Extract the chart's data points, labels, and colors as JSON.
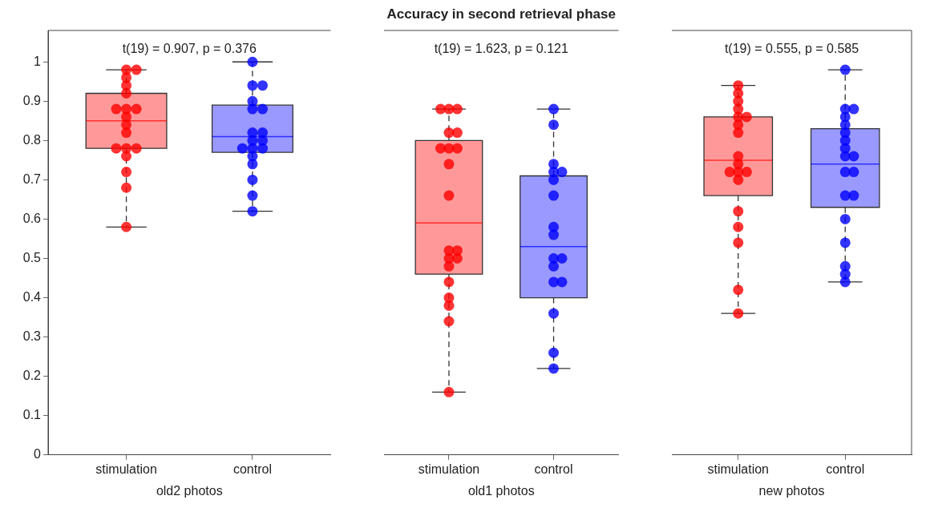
{
  "chart_data": [
    {
      "type": "box",
      "categories": [
        "stimulation",
        "control"
      ],
      "xlabel": "old2 photos",
      "ylim": [
        0,
        1.08
      ],
      "yticks": [
        0,
        0.1,
        0.2,
        0.3,
        0.4,
        0.5,
        0.6,
        0.7,
        0.8,
        0.9,
        1
      ],
      "grid": false,
      "legend": false,
      "marker": "circle",
      "series": [
        {
          "type": "box",
          "color": "#ff0000",
          "boxes": [
            {
              "low": 0.58,
              "q1": 0.78,
              "median": 0.85,
              "q3": 0.92,
              "high": 0.98
            },
            null
          ]
        },
        {
          "type": "box",
          "color": "#0000ff",
          "boxes": [
            null,
            {
              "low": 0.62,
              "q1": 0.77,
              "median": 0.81,
              "q3": 0.89,
              "high": 1.0
            }
          ]
        },
        {
          "type": "scatter",
          "color": "#ff0000",
          "x": [
            "stimulation",
            "stimulation",
            "stimulation",
            "stimulation",
            "stimulation",
            "stimulation",
            "stimulation",
            "stimulation",
            "stimulation",
            "stimulation",
            "stimulation",
            "stimulation",
            "stimulation",
            "stimulation",
            "stimulation",
            "stimulation",
            "stimulation",
            "stimulation"
          ],
          "values": [
            0.98,
            0.98,
            0.96,
            0.94,
            0.92,
            0.88,
            0.88,
            0.88,
            0.86,
            0.84,
            0.82,
            0.78,
            0.78,
            0.78,
            0.76,
            0.72,
            0.68,
            0.58
          ]
        },
        {
          "type": "scatter",
          "color": "#0000ff",
          "x": [
            "control",
            "control",
            "control",
            "control",
            "control",
            "control",
            "control",
            "control",
            "control",
            "control",
            "control",
            "control",
            "control",
            "control",
            "control",
            "control",
            "control",
            "control"
          ],
          "values": [
            1.0,
            0.94,
            0.94,
            0.9,
            0.88,
            0.88,
            0.82,
            0.82,
            0.8,
            0.8,
            0.78,
            0.78,
            0.78,
            0.76,
            0.74,
            0.7,
            0.66,
            0.62
          ]
        }
      ],
      "annotations": [
        "t(19) = 0.907, p = 0.376"
      ]
    },
    {
      "type": "box",
      "title": "Accuracy in second retrieval phase",
      "categories": [
        "stimulation",
        "control"
      ],
      "xlabel": "old1 photos",
      "ylim": [
        0,
        1.08
      ],
      "yticks": [
        0,
        0.1,
        0.2,
        0.3,
        0.4,
        0.5,
        0.6,
        0.7,
        0.8,
        0.9,
        1
      ],
      "tick_labels": "x",
      "grid": false,
      "legend": false,
      "marker": "circle",
      "series": [
        {
          "type": "box",
          "color": "#ff0000",
          "boxes": [
            {
              "low": 0.16,
              "q1": 0.46,
              "median": 0.59,
              "q3": 0.8,
              "high": 0.88
            },
            null
          ]
        },
        {
          "type": "box",
          "color": "#0000ff",
          "boxes": [
            null,
            {
              "low": 0.22,
              "q1": 0.4,
              "median": 0.53,
              "q3": 0.71,
              "high": 0.88
            }
          ]
        },
        {
          "type": "scatter",
          "color": "#ff0000",
          "x": [
            "stimulation",
            "stimulation",
            "stimulation",
            "stimulation",
            "stimulation",
            "stimulation",
            "stimulation",
            "stimulation",
            "stimulation",
            "stimulation",
            "stimulation",
            "stimulation",
            "stimulation",
            "stimulation",
            "stimulation",
            "stimulation",
            "stimulation",
            "stimulation",
            "stimulation",
            "stimulation"
          ],
          "values": [
            0.88,
            0.88,
            0.88,
            0.82,
            0.82,
            0.78,
            0.78,
            0.78,
            0.74,
            0.66,
            0.52,
            0.52,
            0.5,
            0.5,
            0.48,
            0.44,
            0.4,
            0.38,
            0.34,
            0.16
          ]
        },
        {
          "type": "scatter",
          "color": "#0000ff",
          "x": [
            "control",
            "control",
            "control",
            "control",
            "control",
            "control",
            "control",
            "control",
            "control",
            "control",
            "control",
            "control",
            "control",
            "control",
            "control",
            "control",
            "control"
          ],
          "values": [
            0.88,
            0.84,
            0.74,
            0.72,
            0.72,
            0.7,
            0.66,
            0.58,
            0.56,
            0.5,
            0.5,
            0.48,
            0.44,
            0.44,
            0.36,
            0.26,
            0.22
          ]
        }
      ],
      "annotations": [
        "t(19) = 1.623, p = 0.121"
      ]
    },
    {
      "type": "box",
      "categories": [
        "stimulation",
        "control"
      ],
      "xlabel": "new photos",
      "ylim": [
        0,
        1.08
      ],
      "yticks": [
        0,
        0.1,
        0.2,
        0.3,
        0.4,
        0.5,
        0.6,
        0.7,
        0.8,
        0.9,
        1
      ],
      "tick_labels": "x",
      "grid": false,
      "legend": false,
      "marker": "circle",
      "series": [
        {
          "type": "box",
          "color": "#ff0000",
          "boxes": [
            {
              "low": 0.36,
              "q1": 0.66,
              "median": 0.75,
              "q3": 0.86,
              "high": 0.94
            },
            null
          ]
        },
        {
          "type": "box",
          "color": "#0000ff",
          "boxes": [
            null,
            {
              "low": 0.44,
              "q1": 0.63,
              "median": 0.74,
              "q3": 0.83,
              "high": 0.98
            }
          ]
        },
        {
          "type": "scatter",
          "color": "#ff0000",
          "x": [
            "stimulation",
            "stimulation",
            "stimulation",
            "stimulation",
            "stimulation",
            "stimulation",
            "stimulation",
            "stimulation",
            "stimulation",
            "stimulation",
            "stimulation",
            "stimulation",
            "stimulation",
            "stimulation",
            "stimulation",
            "stimulation",
            "stimulation",
            "stimulation",
            "stimulation"
          ],
          "values": [
            0.94,
            0.92,
            0.9,
            0.88,
            0.86,
            0.86,
            0.84,
            0.82,
            0.76,
            0.74,
            0.72,
            0.72,
            0.72,
            0.7,
            0.62,
            0.58,
            0.54,
            0.42,
            0.36
          ]
        },
        {
          "type": "scatter",
          "color": "#0000ff",
          "x": [
            "control",
            "control",
            "control",
            "control",
            "control",
            "control",
            "control",
            "control",
            "control",
            "control",
            "control",
            "control",
            "control",
            "control",
            "control",
            "control",
            "control",
            "control",
            "control"
          ],
          "values": [
            0.98,
            0.88,
            0.88,
            0.86,
            0.84,
            0.82,
            0.8,
            0.78,
            0.76,
            0.76,
            0.72,
            0.72,
            0.66,
            0.66,
            0.6,
            0.54,
            0.48,
            0.46,
            0.44
          ]
        }
      ],
      "annotations": [
        "t(19) = 0.555, p = 0.585"
      ]
    }
  ]
}
